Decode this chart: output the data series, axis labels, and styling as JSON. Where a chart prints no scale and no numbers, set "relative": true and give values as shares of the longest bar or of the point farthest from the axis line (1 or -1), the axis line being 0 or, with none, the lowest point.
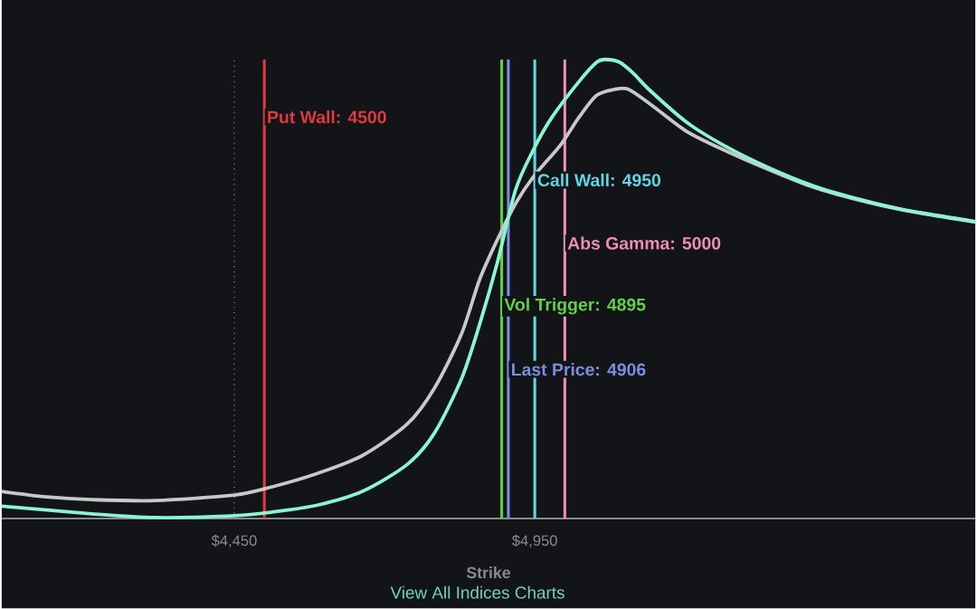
{
  "chart_data": {
    "type": "line",
    "relative": true,
    "xlabel": "Strike",
    "xlim": [
      4063,
      5683
    ],
    "xticks": [
      {
        "value": 4450,
        "label": "$4,450"
      },
      {
        "value": 4950,
        "label": "$4,950"
      }
    ],
    "grid": "x",
    "series": [
      {
        "color": "#c8c8c8",
        "x": [
          4063,
          4138,
          4213,
          4318,
          4450,
          4513,
          4588,
          4663,
          4738,
          4783,
          4828,
          4858,
          4888,
          4918,
          4948,
          4993,
          5023,
          5053,
          5083,
          5106,
          5143,
          5203,
          5263,
          5338,
          5413,
          5488,
          5563,
          5683
        ],
        "values": [
          0.059,
          0.047,
          0.041,
          0.039,
          0.051,
          0.069,
          0.098,
          0.137,
          0.206,
          0.284,
          0.402,
          0.52,
          0.608,
          0.686,
          0.745,
          0.814,
          0.873,
          0.922,
          0.935,
          0.935,
          0.902,
          0.843,
          0.804,
          0.761,
          0.722,
          0.694,
          0.672,
          0.646
        ]
      },
      {
        "color": "#8af5d0",
        "x": [
          4063,
          4213,
          4318,
          4450,
          4513,
          4588,
          4663,
          4738,
          4783,
          4828,
          4858,
          4888,
          4918,
          4948,
          4978,
          5023,
          5053,
          5068,
          5091,
          5113,
          5143,
          5203,
          5263,
          5338,
          5413,
          5488,
          5563,
          5683
        ],
        "values": [
          0.027,
          0.01,
          0.002,
          0.006,
          0.014,
          0.029,
          0.059,
          0.118,
          0.186,
          0.304,
          0.422,
          0.559,
          0.716,
          0.804,
          0.873,
          0.951,
          0.994,
          1,
          0.994,
          0.971,
          0.931,
          0.863,
          0.814,
          0.765,
          0.725,
          0.696,
          0.673,
          0.647
        ]
      }
    ],
    "ref_lines": [
      {
        "axis": "x",
        "value": 4500,
        "label": "Put Wall: 4500",
        "color": "#e0393e"
      },
      {
        "axis": "x",
        "value": 4950,
        "label": "Call Wall: 4950",
        "color": "#5fd8e6"
      },
      {
        "axis": "x",
        "value": 5000,
        "label": "Abs Gamma: 5000",
        "color": "#f08cb8"
      },
      {
        "axis": "x",
        "value": 4895,
        "label": "Vol Trigger: 4895",
        "color": "#62d14a"
      },
      {
        "axis": "x",
        "value": 4906,
        "label": "Last Price: 4906",
        "color": "#7b8fe0"
      }
    ],
    "annotations": [
      "View All Indices Charts"
    ]
  }
}
